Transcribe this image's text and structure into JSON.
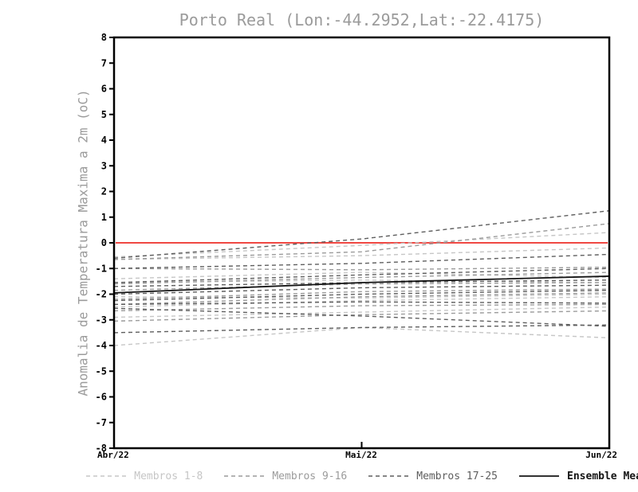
{
  "chart_data": {
    "type": "line",
    "title": "Porto Real (Lon:-44.2952,Lat:-22.4175)",
    "ylabel": "Anomalia de Temperatura Maxima a 2m (oC)",
    "x_categories": [
      "Abr/22",
      "Mai/22",
      "Jun/22"
    ],
    "ylim": [
      -8,
      8
    ],
    "y_ticks": [
      8,
      7,
      6,
      5,
      4,
      3,
      2,
      1,
      0,
      -1,
      -2,
      -3,
      -4,
      -5,
      -6,
      -7,
      -8
    ],
    "grid": false,
    "legend_position": "bottom",
    "zero_line": {
      "value": 0,
      "color": "#f04843"
    },
    "groups": [
      {
        "name": "Membros 1-8",
        "color": "#c6c6c6",
        "style": "dashed",
        "members": [
          [
            -0.55,
            -0.1,
            0.4
          ],
          [
            -0.65,
            -0.5,
            -0.2
          ],
          [
            -1.4,
            -1.15,
            -1.35
          ],
          [
            -1.55,
            -1.45,
            -1.55
          ],
          [
            -2.1,
            -2.15,
            -2.0
          ],
          [
            -2.5,
            -2.25,
            -2.1
          ],
          [
            -2.9,
            -2.7,
            -2.5
          ],
          [
            -4.0,
            -3.3,
            -3.7
          ]
        ]
      },
      {
        "name": "Membros 9-16",
        "color": "#9b9b9b",
        "style": "dashed",
        "members": [
          [
            -0.65,
            -0.35,
            0.75
          ],
          [
            -1.0,
            -1.05,
            -0.95
          ],
          [
            -1.6,
            -1.35,
            -1.15
          ],
          [
            -1.85,
            -1.6,
            -1.55
          ],
          [
            -2.2,
            -1.9,
            -1.8
          ],
          [
            -2.4,
            -2.1,
            -1.95
          ],
          [
            -2.65,
            -2.45,
            -2.4
          ],
          [
            -3.05,
            -2.8,
            -2.65
          ]
        ]
      },
      {
        "name": "Membros 17-25",
        "color": "#5e5e5e",
        "style": "dashed",
        "members": [
          [
            -0.6,
            0.15,
            1.25
          ],
          [
            -1.0,
            -0.8,
            -0.45
          ],
          [
            -1.55,
            -1.25,
            -1.0
          ],
          [
            -1.7,
            -1.55,
            -1.45
          ],
          [
            -2.0,
            -1.75,
            -1.65
          ],
          [
            -2.25,
            -2.0,
            -1.85
          ],
          [
            -2.4,
            -2.3,
            -2.35
          ],
          [
            -2.55,
            -2.85,
            -3.25
          ],
          [
            -3.5,
            -3.3,
            -3.2
          ]
        ]
      }
    ],
    "mean": {
      "name": "Ensemble Mean",
      "color": "#141414",
      "style": "solid",
      "values": [
        -1.95,
        -1.55,
        -1.3
      ]
    },
    "axis_color": "#000000",
    "background_color": "#ffffff"
  }
}
